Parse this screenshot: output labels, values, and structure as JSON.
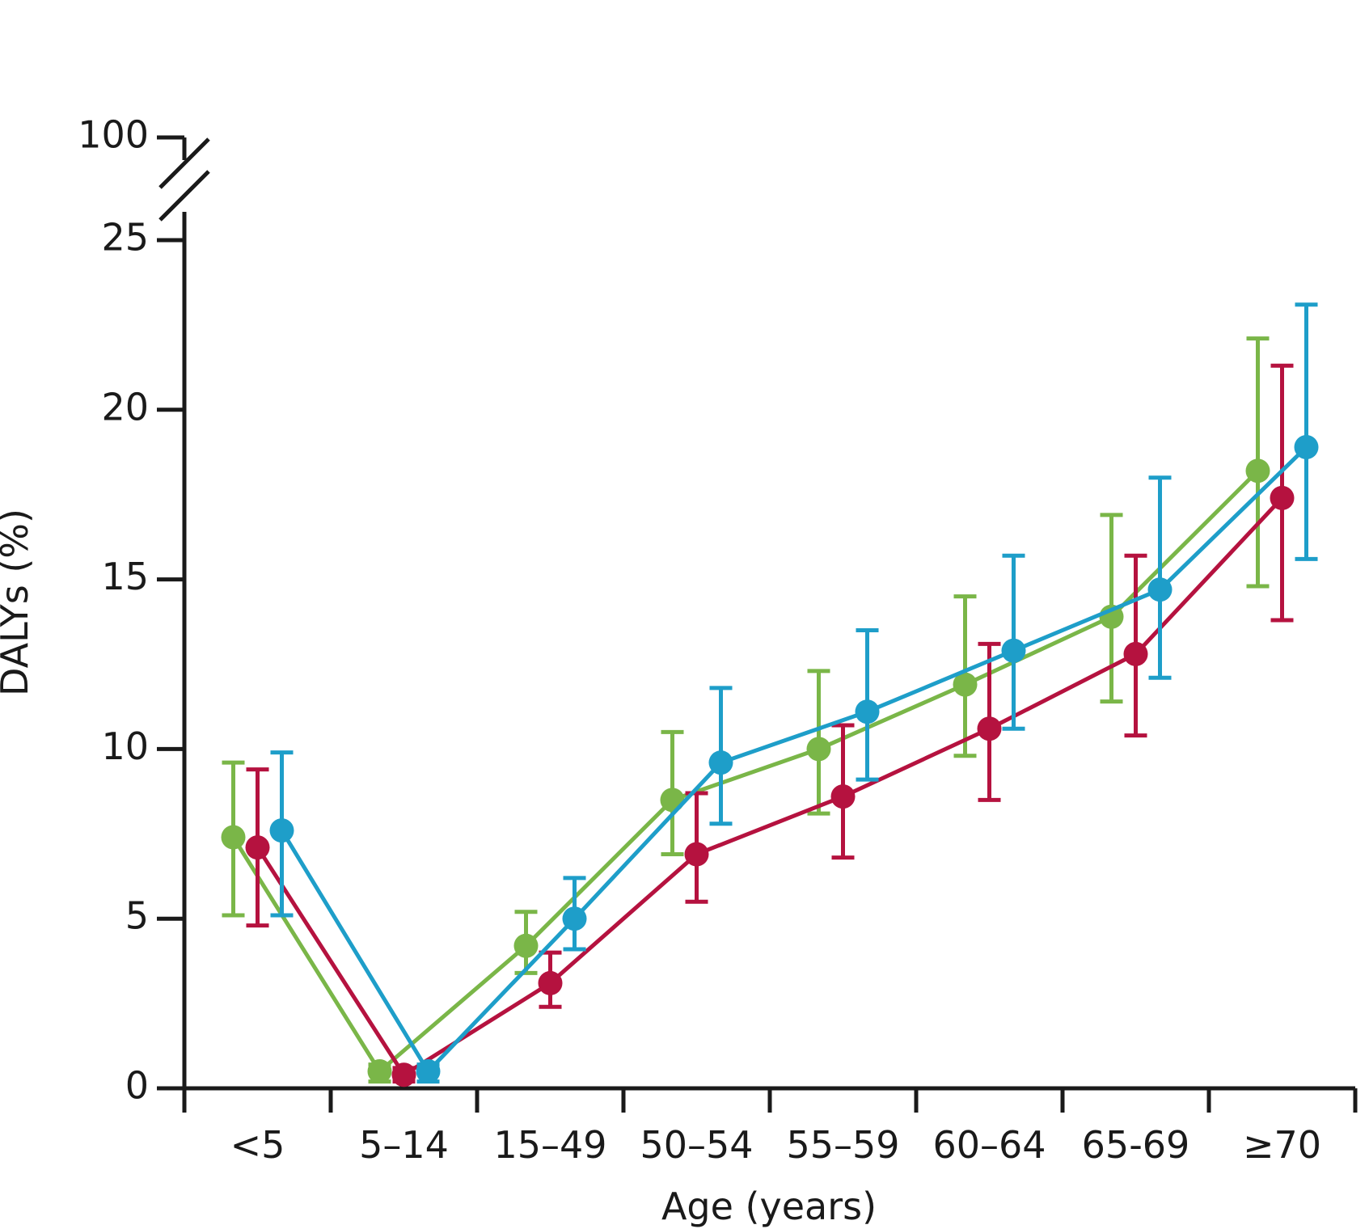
{
  "chart_data": {
    "type": "line",
    "xlabel": "Age (years)",
    "ylabel": "DALYs (%)",
    "categories": [
      "<5",
      "5–14",
      "15–49",
      "50–54",
      "55–59",
      "60–64",
      "65-69",
      "≥70"
    ],
    "ylim": [
      0,
      25
    ],
    "y_ticks": [
      0,
      5,
      10,
      15,
      20,
      25
    ],
    "y_break_label": "100",
    "error_bars": true,
    "grid": false,
    "series": [
      {
        "color": "#7ab648",
        "values": [
          7.4,
          0.5,
          4.2,
          8.5,
          10.0,
          11.9,
          13.9,
          18.2
        ],
        "lower": [
          5.1,
          0.2,
          3.4,
          6.9,
          8.1,
          9.8,
          11.4,
          14.8
        ],
        "upper": [
          9.6,
          0.7,
          5.2,
          10.5,
          12.3,
          14.5,
          16.9,
          22.1
        ]
      },
      {
        "color": "#b5123f",
        "values": [
          7.1,
          0.4,
          3.1,
          6.9,
          8.6,
          10.6,
          12.8,
          17.4
        ],
        "lower": [
          4.8,
          0.2,
          2.4,
          5.5,
          6.8,
          8.5,
          10.4,
          13.8
        ],
        "upper": [
          9.4,
          0.6,
          4.0,
          8.7,
          10.7,
          13.1,
          15.7,
          21.3
        ]
      },
      {
        "color": "#1e9ec9",
        "values": [
          7.6,
          0.5,
          5.0,
          9.6,
          11.1,
          12.9,
          14.7,
          18.9
        ],
        "lower": [
          5.1,
          0.2,
          4.1,
          7.8,
          9.1,
          10.6,
          12.1,
          15.6
        ],
        "upper": [
          9.9,
          0.7,
          6.2,
          11.8,
          13.5,
          15.7,
          18.0,
          23.1
        ]
      }
    ]
  }
}
